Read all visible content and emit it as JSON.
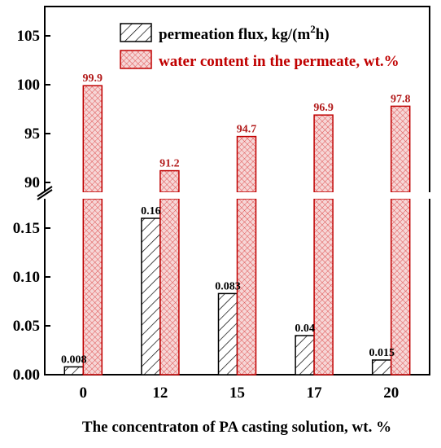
{
  "chart_data": {
    "type": "bar",
    "xlabel": "The concentraton of PA casting solution, wt. %",
    "categories": [
      "0",
      "12",
      "15",
      "17",
      "20"
    ],
    "series": [
      {
        "name": "permeation flux, kg/(m2h)",
        "axis": "lower",
        "values": [
          0.008,
          0.16,
          0.083,
          0.04,
          0.015
        ],
        "labels": [
          "0.008",
          "0.16",
          "0.083",
          "0.04",
          "0.015"
        ],
        "color": "#000000",
        "pattern": "diagonal-hatch"
      },
      {
        "name": "water content in the permeate, wt.%",
        "axis": "upper",
        "values": [
          99.9,
          91.2,
          94.7,
          96.9,
          97.8
        ],
        "labels": [
          "99.9",
          "91.2",
          "94.7",
          "96.9",
          "97.8"
        ],
        "color": "#c00000",
        "pattern": "crosshatch"
      }
    ],
    "legend": {
      "entry1_text": "permeation flux, kg/(m",
      "entry1_sup": "2",
      "entry1_tail": "h)",
      "entry2_text": "water content in the permeate, wt.%",
      "position": "top"
    },
    "y_axis_broken": true,
    "lower_axis": {
      "range": [
        0,
        0.18
      ],
      "ticks": [
        "0.00",
        "0.05",
        "0.10",
        "0.15"
      ]
    },
    "upper_axis": {
      "range": [
        89,
        108
      ],
      "ticks": [
        "90",
        "95",
        "100",
        "105"
      ]
    },
    "grid": false
  }
}
